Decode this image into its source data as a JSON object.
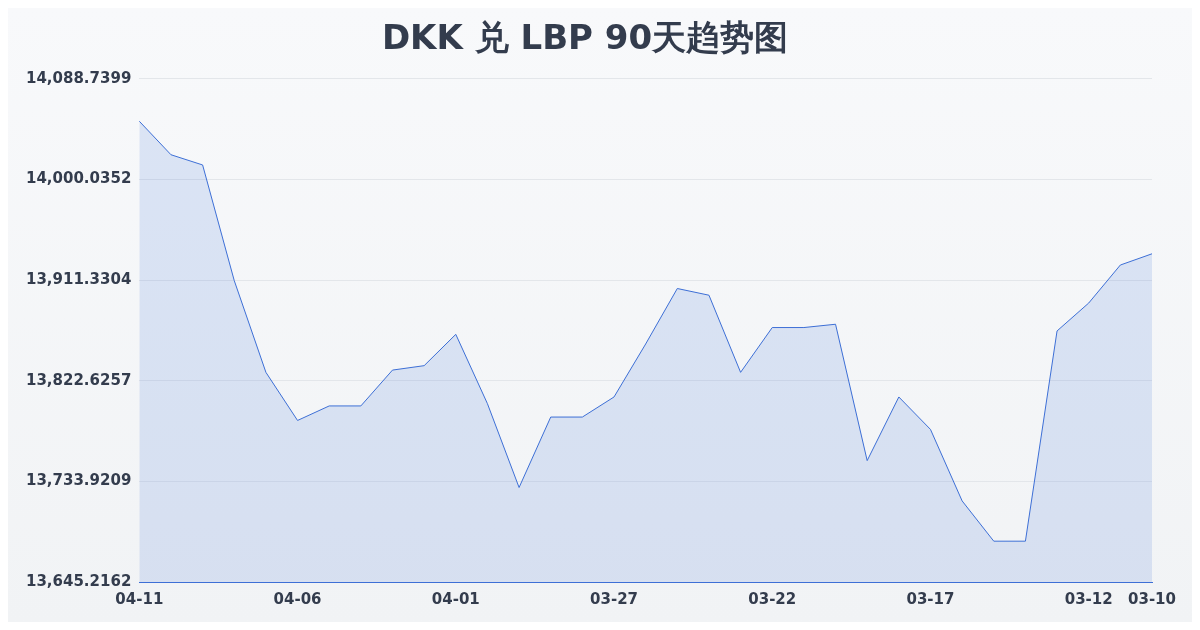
{
  "chart_data": {
    "type": "area",
    "title": "DKK 兑 LBP 90天趋势图",
    "categories": [
      "04-11",
      null,
      null,
      null,
      null,
      "04-06",
      null,
      null,
      null,
      null,
      "04-01",
      null,
      null,
      null,
      null,
      "03-27",
      null,
      null,
      null,
      null,
      "03-22",
      null,
      null,
      null,
      null,
      "03-17",
      null,
      null,
      null,
      null,
      "03-12",
      null,
      "03-10"
    ],
    "series": [
      {
        "color": "#3d6fd6",
        "values": [
          14051.3,
          14021.8,
          14012.8,
          13910.8,
          13830.0,
          13787.6,
          13800.4,
          13800.4,
          13832.0,
          13835.9,
          13863.5,
          13802.4,
          13728.5,
          13790.6,
          13790.6,
          13808.3,
          13855,
          13903.9,
          13898.0,
          13830.0,
          13869.5,
          13869.5,
          13872.4,
          13752.2,
          13808.3,
          13779.7,
          13716.7,
          13681.2,
          13681.2,
          13866.5,
          13891.1,
          13924.6,
          13934.5
        ]
      }
    ],
    "ylim": [
      13645.2162,
      14088.7399
    ],
    "yticks": [
      {
        "value": 13645.2162,
        "label": "13,645.2162"
      },
      {
        "value": 13733.9209,
        "label": "13,733.9209"
      },
      {
        "value": 13822.6257,
        "label": "13,822.6257"
      },
      {
        "value": 13911.3304,
        "label": "13,911.3304"
      },
      {
        "value": 14000.0352,
        "label": "14,000.0352"
      },
      {
        "value": 14088.7399,
        "label": "14,088.7399"
      }
    ],
    "grid": "y",
    "legend": false,
    "marker": "none",
    "line_style": "solid"
  }
}
